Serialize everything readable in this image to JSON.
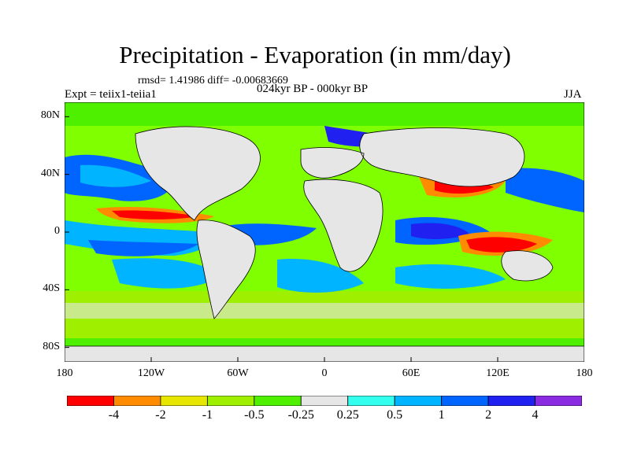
{
  "title": "Precipitation - Evaporation (in mm/day)",
  "stats": "rmsd= 1.41986 diff= -0.00683669",
  "experiment": "Expt = teiix1-teiia1",
  "period": "024kyr BP - 000kyr BP",
  "season": "JJA",
  "map": {
    "projection": "cylindrical equidistant",
    "lat_range": [
      -90,
      90
    ],
    "lon_range": [
      -180,
      180
    ],
    "y_ticks": [
      "80N",
      "40N",
      "0",
      "40S",
      "80S"
    ],
    "x_ticks": [
      "180",
      "120W",
      "60W",
      "0",
      "60E",
      "120E",
      "180"
    ],
    "land_color": "#e6e6e6",
    "ocean_background_color": "#7fff00"
  },
  "colorbar": {
    "labels": [
      "-4",
      "-2",
      "-1",
      "-0.5",
      "-0.25",
      "0.25",
      "0.5",
      "1",
      "2",
      "4"
    ],
    "colors": [
      "#ff0000",
      "#ff8c00",
      "#e6e600",
      "#9ef000",
      "#4ef000",
      "#e6e6e6",
      "#33ffee",
      "#00b4ff",
      "#0064ff",
      "#2020f0",
      "#8a2be2"
    ]
  }
}
